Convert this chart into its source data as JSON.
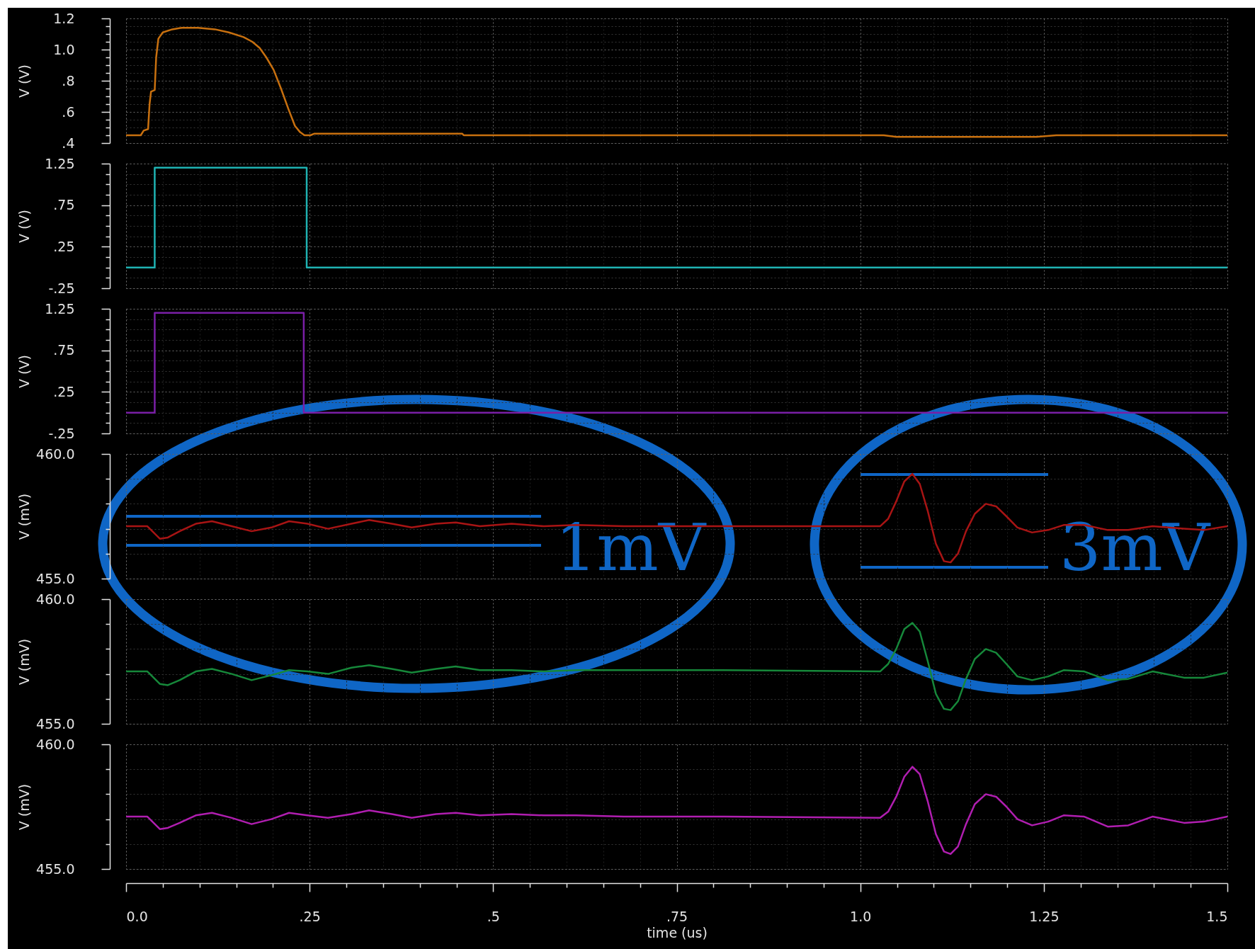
{
  "chart_data": [
    {
      "type": "line",
      "ylabel": "V (V)",
      "color": "#c8700f",
      "xlim": [
        0,
        1.5
      ],
      "ylim": [
        0.4,
        1.2
      ],
      "grid": true,
      "tick_labels": "y",
      "yticks": [
        {
          "value": 0.4,
          "label": ".4"
        },
        {
          "value": 0.45,
          "label": null
        },
        {
          "value": 0.5,
          "label": null
        },
        {
          "value": 0.55,
          "label": null
        },
        {
          "value": 0.6,
          "label": ".6"
        },
        {
          "value": 0.65,
          "label": null
        },
        {
          "value": 0.7,
          "label": null
        },
        {
          "value": 0.75,
          "label": null
        },
        {
          "value": 0.8,
          "label": ".8"
        },
        {
          "value": 0.85,
          "label": null
        },
        {
          "value": 0.9,
          "label": null
        },
        {
          "value": 0.95,
          "label": null
        },
        {
          "value": 1,
          "label": "1.0"
        },
        {
          "value": 1.05,
          "label": null
        },
        {
          "value": 1.1,
          "label": null
        },
        {
          "value": 1.15,
          "label": null
        },
        {
          "value": 1.2,
          "label": "1.2"
        }
      ],
      "x": [
        0,
        0.02,
        0.024,
        0.03,
        0.032,
        0.034,
        0.039,
        0.041,
        0.044,
        0.05,
        0.063,
        0.076,
        0.098,
        0.121,
        0.14,
        0.16,
        0.172,
        0.182,
        0.191,
        0.201,
        0.211,
        0.221,
        0.23,
        0.237,
        0.243,
        0.251,
        0.256,
        0.458,
        0.46,
        1.032,
        1.049,
        1.24,
        1.267,
        1.5
      ],
      "values": [
        0.45,
        0.45,
        0.48,
        0.49,
        0.65,
        0.73,
        0.74,
        0.95,
        1.07,
        1.11,
        1.13,
        1.14,
        1.14,
        1.13,
        1.11,
        1.08,
        1.05,
        1.01,
        0.95,
        0.87,
        0.75,
        0.62,
        0.51,
        0.47,
        0.45,
        0.45,
        0.46,
        0.46,
        0.45,
        0.45,
        0.44,
        0.44,
        0.45,
        0.45
      ]
    },
    {
      "type": "step",
      "ylabel": "V (V)",
      "color": "#1fb3b3",
      "xlim": [
        0,
        1.5
      ],
      "ylim": [
        -0.25,
        1.25
      ],
      "grid": true,
      "tick_labels": "y",
      "yticks": [
        {
          "value": -0.25,
          "label": "-.25"
        },
        {
          "value": -0.125,
          "label": null
        },
        {
          "value": 0,
          "label": null
        },
        {
          "value": 0.125,
          "label": null
        },
        {
          "value": 0.25,
          "label": ".25"
        },
        {
          "value": 0.375,
          "label": null
        },
        {
          "value": 0.5,
          "label": null
        },
        {
          "value": 0.625,
          "label": null
        },
        {
          "value": 0.75,
          "label": ".75"
        },
        {
          "value": 0.875,
          "label": null
        },
        {
          "value": 1,
          "label": null
        },
        {
          "value": 1.125,
          "label": null
        },
        {
          "value": 1.25,
          "label": "1.25"
        }
      ],
      "x": [
        0,
        0.039,
        0.246,
        1.5
      ],
      "values": [
        0,
        1.2,
        0,
        0
      ]
    },
    {
      "type": "step",
      "ylabel": "V (V)",
      "color": "#7a1fa6",
      "xlim": [
        0,
        1.5
      ],
      "ylim": [
        -0.25,
        1.25
      ],
      "grid": true,
      "tick_labels": "y",
      "yticks": [
        {
          "value": -0.25,
          "label": "-.25"
        },
        {
          "value": -0.125,
          "label": null
        },
        {
          "value": 0,
          "label": null
        },
        {
          "value": 0.125,
          "label": null
        },
        {
          "value": 0.25,
          "label": ".25"
        },
        {
          "value": 0.375,
          "label": null
        },
        {
          "value": 0.5,
          "label": null
        },
        {
          "value": 0.625,
          "label": null
        },
        {
          "value": 0.75,
          "label": ".75"
        },
        {
          "value": 0.875,
          "label": null
        },
        {
          "value": 1,
          "label": null
        },
        {
          "value": 1.125,
          "label": null
        },
        {
          "value": 1.25,
          "label": "1.25"
        }
      ],
      "x": [
        0,
        0.039,
        0.242,
        1.5
      ],
      "values": [
        0,
        1.2,
        0,
        0
      ]
    },
    {
      "type": "line",
      "ylabel": "V (mV)",
      "color": "#a81414",
      "xlim": [
        0,
        1.5
      ],
      "ylim": [
        455,
        460
      ],
      "grid": true,
      "tick_labels": "y",
      "yticks": [
        {
          "value": 455,
          "label": "455.0"
        },
        {
          "value": 456,
          "label": null
        },
        {
          "value": 457,
          "label": null
        },
        {
          "value": 458,
          "label": null
        },
        {
          "value": 459,
          "label": null
        },
        {
          "value": 460,
          "label": "460.0"
        }
      ],
      "x": [
        0,
        0.029,
        0.046,
        0.057,
        0.073,
        0.095,
        0.117,
        0.144,
        0.171,
        0.198,
        0.222,
        0.247,
        0.275,
        0.307,
        0.331,
        0.362,
        0.389,
        0.422,
        0.449,
        0.482,
        0.525,
        0.569,
        0.613,
        0.678,
        0.814,
        1.027,
        1.038,
        1.049,
        1.06,
        1.071,
        1.081,
        1.092,
        1.103,
        1.114,
        1.123,
        1.133,
        1.144,
        1.156,
        1.171,
        1.185,
        1.199,
        1.214,
        1.234,
        1.256,
        1.277,
        1.305,
        1.337,
        1.365,
        1.398,
        1.441,
        1.468,
        1.5
      ],
      "values": [
        457.1,
        457.1,
        456.6,
        456.65,
        456.9,
        457.2,
        457.3,
        457.1,
        456.9,
        457.05,
        457.3,
        457.2,
        457.0,
        457.2,
        457.35,
        457.2,
        457.05,
        457.2,
        457.25,
        457.1,
        457.2,
        457.1,
        457.15,
        457.1,
        457.1,
        457.1,
        457.4,
        458.1,
        458.9,
        459.2,
        458.8,
        457.7,
        456.4,
        455.7,
        455.65,
        456.0,
        456.9,
        457.6,
        458.0,
        457.9,
        457.5,
        457.05,
        456.85,
        456.95,
        457.15,
        457.15,
        456.95,
        456.95,
        457.1,
        457.0,
        456.95,
        457.1
      ],
      "annotations": [
        "1mV",
        "3mV"
      ]
    },
    {
      "type": "line",
      "ylabel": "V (mV)",
      "color": "#16883a",
      "xlim": [
        0,
        1.5
      ],
      "ylim": [
        455,
        460
      ],
      "grid": true,
      "tick_labels": "y",
      "yticks": [
        {
          "value": 455,
          "label": "455.0"
        },
        {
          "value": 456,
          "label": null
        },
        {
          "value": 457,
          "label": null
        },
        {
          "value": 458,
          "label": null
        },
        {
          "value": 459,
          "label": null
        },
        {
          "value": 460,
          "label": "460.0"
        }
      ],
      "x": [
        0,
        0.029,
        0.046,
        0.057,
        0.073,
        0.095,
        0.117,
        0.144,
        0.171,
        0.198,
        0.222,
        0.247,
        0.275,
        0.307,
        0.331,
        0.362,
        0.389,
        0.422,
        0.449,
        0.482,
        0.525,
        0.569,
        0.613,
        0.678,
        0.814,
        1.027,
        1.038,
        1.049,
        1.06,
        1.071,
        1.081,
        1.092,
        1.103,
        1.114,
        1.123,
        1.133,
        1.144,
        1.156,
        1.171,
        1.185,
        1.199,
        1.214,
        1.234,
        1.256,
        1.277,
        1.305,
        1.337,
        1.365,
        1.398,
        1.441,
        1.468,
        1.5
      ],
      "values": [
        457.1,
        457.1,
        456.6,
        456.55,
        456.75,
        457.1,
        457.2,
        457.0,
        456.75,
        456.95,
        457.15,
        457.1,
        457.0,
        457.25,
        457.35,
        457.2,
        457.05,
        457.2,
        457.3,
        457.15,
        457.15,
        457.1,
        457.15,
        457.15,
        457.15,
        457.1,
        457.4,
        458.0,
        458.8,
        459.05,
        458.7,
        457.5,
        456.2,
        455.6,
        455.55,
        455.9,
        456.8,
        457.6,
        458.0,
        457.85,
        457.4,
        456.9,
        456.75,
        456.9,
        457.15,
        457.1,
        456.75,
        456.8,
        457.1,
        456.85,
        456.85,
        457.05
      ]
    },
    {
      "type": "line",
      "ylabel": "V (mV)",
      "xlabel": "time (us)",
      "color": "#b01eb0",
      "xlim": [
        0,
        1.5
      ],
      "ylim": [
        455,
        460
      ],
      "grid": true,
      "xticks": [
        {
          "value": 0,
          "label": "0.0"
        },
        {
          "value": 0.05,
          "label": null
        },
        {
          "value": 0.1,
          "label": null
        },
        {
          "value": 0.15,
          "label": null
        },
        {
          "value": 0.2,
          "label": null
        },
        {
          "value": 0.25,
          "label": ".25"
        },
        {
          "value": 0.3,
          "label": null
        },
        {
          "value": 0.35,
          "label": null
        },
        {
          "value": 0.4,
          "label": null
        },
        {
          "value": 0.45,
          "label": null
        },
        {
          "value": 0.5,
          "label": ".5"
        },
        {
          "value": 0.55,
          "label": null
        },
        {
          "value": 0.6,
          "label": null
        },
        {
          "value": 0.65,
          "label": null
        },
        {
          "value": 0.7,
          "label": null
        },
        {
          "value": 0.75,
          "label": ".75"
        },
        {
          "value": 0.8,
          "label": null
        },
        {
          "value": 0.85,
          "label": null
        },
        {
          "value": 0.9,
          "label": null
        },
        {
          "value": 0.95,
          "label": null
        },
        {
          "value": 1,
          "label": "1.0"
        },
        {
          "value": 1.05,
          "label": null
        },
        {
          "value": 1.1,
          "label": null
        },
        {
          "value": 1.15,
          "label": null
        },
        {
          "value": 1.2,
          "label": null
        },
        1.25,
        {
          "value": 1.3,
          "label": null
        },
        {
          "value": 1.35,
          "label": null
        },
        {
          "value": 1.4,
          "label": null
        },
        {
          "value": 1.45,
          "label": null
        },
        1.5
      ],
      "yticks": [
        {
          "value": 455,
          "label": "455.0"
        },
        {
          "value": 456,
          "label": null
        },
        {
          "value": 457,
          "label": null
        },
        {
          "value": 458,
          "label": null
        },
        {
          "value": 459,
          "label": null
        },
        {
          "value": 460,
          "label": "460.0"
        }
      ],
      "x": [
        0,
        0.029,
        0.046,
        0.057,
        0.073,
        0.095,
        0.117,
        0.144,
        0.171,
        0.198,
        0.222,
        0.247,
        0.275,
        0.307,
        0.331,
        0.362,
        0.389,
        0.422,
        0.449,
        0.482,
        0.525,
        0.569,
        0.613,
        0.678,
        0.814,
        1.027,
        1.038,
        1.049,
        1.06,
        1.071,
        1.081,
        1.092,
        1.103,
        1.114,
        1.123,
        1.133,
        1.144,
        1.156,
        1.171,
        1.185,
        1.199,
        1.214,
        1.234,
        1.256,
        1.277,
        1.305,
        1.337,
        1.365,
        1.398,
        1.441,
        1.468,
        1.5
      ],
      "values": [
        457.1,
        457.1,
        456.6,
        456.65,
        456.85,
        457.15,
        457.25,
        457.05,
        456.8,
        457.0,
        457.25,
        457.15,
        457.05,
        457.2,
        457.35,
        457.2,
        457.05,
        457.2,
        457.25,
        457.15,
        457.2,
        457.15,
        457.15,
        457.1,
        457.1,
        457.05,
        457.3,
        457.9,
        458.7,
        459.1,
        458.8,
        457.7,
        456.4,
        455.7,
        455.6,
        455.9,
        456.8,
        457.6,
        458.0,
        457.9,
        457.5,
        457.0,
        456.75,
        456.9,
        457.15,
        457.1,
        456.7,
        456.75,
        457.1,
        456.85,
        456.9,
        457.1
      ]
    }
  ]
}
